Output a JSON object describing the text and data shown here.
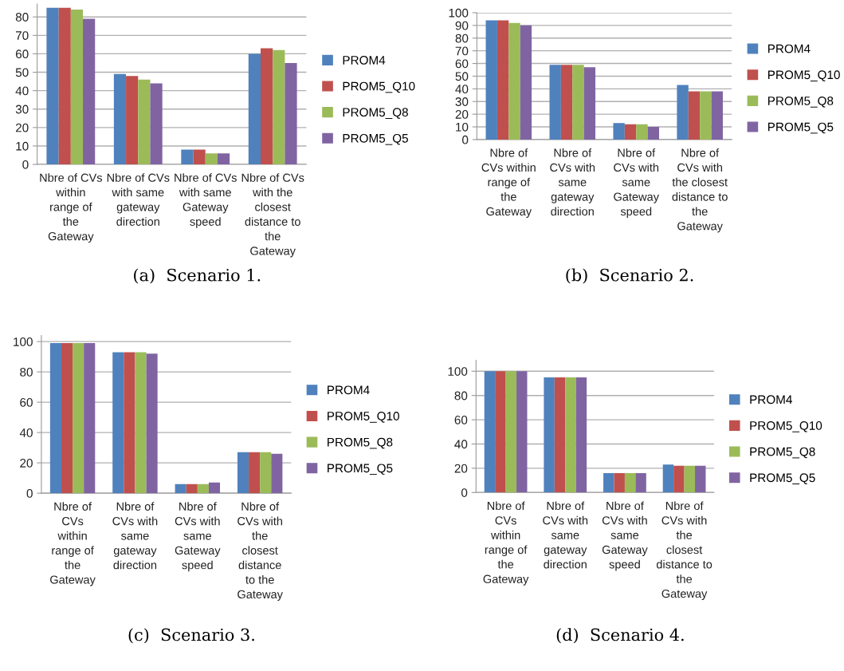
{
  "chart_data": [
    {
      "type": "bar",
      "title": "(a)  Scenario 1.",
      "categories": [
        "Nbre of CVs\nwithin\nrange of\nthe\nGateway",
        "Nbre of CVs\nwith same\ngateway\ndirection",
        "Nbre of CVs\nwith same\nGateway\nspeed",
        "Nbre of CVs\nwith the\nclosest\ndistance to\nthe\nGateway"
      ],
      "series": [
        {
          "name": "PROM4",
          "color": "#4f81bd",
          "values": [
            85,
            49,
            8,
            60
          ]
        },
        {
          "name": "PROM5_Q10",
          "color": "#c0504d",
          "values": [
            85,
            48,
            8,
            63
          ]
        },
        {
          "name": "PROM5_Q8",
          "color": "#9bbb59",
          "values": [
            84,
            46,
            6,
            62
          ]
        },
        {
          "name": "PROM5_Q5",
          "color": "#8064a2",
          "values": [
            79,
            44,
            6,
            55
          ]
        }
      ],
      "ylim": [
        0,
        87
      ],
      "yticks": [
        0,
        10,
        20,
        30,
        40,
        50,
        60,
        70,
        80
      ],
      "grid": "y",
      "legend": "right"
    },
    {
      "type": "bar",
      "title": "(b)  Scenario 2.",
      "categories": [
        "Nbre of\nCVs within\nrange of\nthe\nGateway",
        "Nbre of\nCVs with\nsame\ngateway\ndirection",
        "Nbre of\nCVs with\nsame\nGateway\nspeed",
        "Nbre of\nCVs with\nthe closest\ndistance to\nthe\nGateway"
      ],
      "series": [
        {
          "name": "PROM4",
          "color": "#4f81bd",
          "values": [
            94,
            59,
            13,
            43
          ]
        },
        {
          "name": "PROM5_Q10",
          "color": "#c0504d",
          "values": [
            94,
            59,
            12,
            38
          ]
        },
        {
          "name": "PROM5_Q8",
          "color": "#9bbb59",
          "values": [
            92,
            59,
            12,
            38
          ]
        },
        {
          "name": "PROM5_Q5",
          "color": "#8064a2",
          "values": [
            90,
            57,
            10,
            38
          ]
        }
      ],
      "ylim": [
        0,
        100
      ],
      "yticks": [
        0,
        10,
        20,
        30,
        40,
        50,
        60,
        70,
        80,
        90,
        100
      ],
      "grid": "y",
      "legend": "right"
    },
    {
      "type": "bar",
      "title": "(c)  Scenario 3.",
      "categories": [
        "Nbre of\nCVs\nwithin\nrange of\nthe\nGateway",
        "Nbre of\nCVs with\nsame\ngateway\ndirection",
        "Nbre of\nCVs with\nsame\nGateway\nspeed",
        "Nbre of\nCVs with\nthe\nclosest\ndistance\nto the\nGateway"
      ],
      "series": [
        {
          "name": "PROM4",
          "color": "#4f81bd",
          "values": [
            99,
            93,
            6,
            27
          ]
        },
        {
          "name": "PROM5_Q10",
          "color": "#c0504d",
          "values": [
            99,
            93,
            6,
            27
          ]
        },
        {
          "name": "PROM5_Q8",
          "color": "#9bbb59",
          "values": [
            99,
            93,
            6,
            27
          ]
        },
        {
          "name": "PROM5_Q5",
          "color": "#8064a2",
          "values": [
            99,
            92,
            7,
            26
          ]
        }
      ],
      "ylim": [
        0,
        104
      ],
      "yticks": [
        0,
        20,
        40,
        60,
        80,
        100
      ],
      "grid": "y",
      "legend": "right"
    },
    {
      "type": "bar",
      "title": "(d)  Scenario 4.",
      "categories": [
        "Nbre of\nCVs\nwithin\nrange of\nthe\nGateway",
        "Nbre of\nCVs with\nsame\ngateway\ndirection",
        "Nbre of\nCVs with\nsame\nGateway\nspeed",
        "Nbre of\nCVs with\nthe\nclosest\ndistance to\nthe\nGateway"
      ],
      "series": [
        {
          "name": "PROM4",
          "color": "#4f81bd",
          "values": [
            100,
            95,
            16,
            23
          ]
        },
        {
          "name": "PROM5_Q10",
          "color": "#c0504d",
          "values": [
            100,
            95,
            16,
            22
          ]
        },
        {
          "name": "PROM5_Q8",
          "color": "#9bbb59",
          "values": [
            100,
            95,
            16,
            22
          ]
        },
        {
          "name": "PROM5_Q5",
          "color": "#8064a2",
          "values": [
            100,
            95,
            16,
            22
          ]
        }
      ],
      "ylim": [
        0,
        109
      ],
      "yticks": [
        0,
        20,
        40,
        60,
        80,
        100
      ],
      "grid": "y",
      "legend": "right"
    }
  ]
}
